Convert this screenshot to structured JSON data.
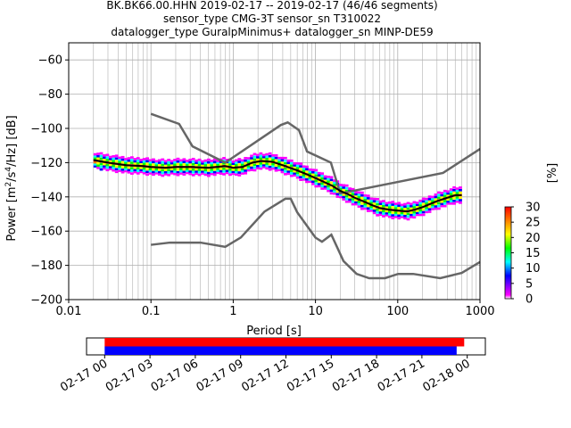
{
  "chart_data": [
    {
      "type": "heatmap",
      "title_lines": [
        "BK.BK66.00.HHN   2019-02-17 -- 2019-02-17  (46/46 segments)",
        "sensor_type CMG-3T sensor_sn T310022",
        "datalogger_type GuralpMinimus+ datalogger_sn MINP-DE59"
      ],
      "xlabel": "Period [s]",
      "ylabel_parts": [
        "Power [m",
        "2",
        "/s",
        "4",
        "/Hz] [dB]"
      ],
      "xscale": "log",
      "xlim": [
        0.01,
        1000
      ],
      "ylim": [
        -200,
        -50
      ],
      "xticks": [
        {
          "value": 0.01,
          "label": "0.01"
        },
        {
          "value": 0.1,
          "label": "0.1"
        },
        {
          "value": 1,
          "label": "1"
        },
        {
          "value": 10,
          "label": "10"
        },
        {
          "value": 100,
          "label": "100"
        },
        {
          "value": 1000,
          "label": "1000"
        }
      ],
      "yticks": [
        {
          "value": -60,
          "label": "−60"
        },
        {
          "value": -80,
          "label": "−80"
        },
        {
          "value": -100,
          "label": "−100"
        },
        {
          "value": -120,
          "label": "−120"
        },
        {
          "value": -140,
          "label": "−140"
        },
        {
          "value": -160,
          "label": "−160"
        },
        {
          "value": -180,
          "label": "−180"
        },
        {
          "value": -200,
          "label": "−200"
        }
      ],
      "grid": true,
      "series": [
        {
          "name": "NHNM",
          "color": "#666666",
          "x": [
            0.1,
            0.22,
            0.32,
            0.8,
            3.8,
            4.6,
            6.3,
            7.9,
            15.4,
            20,
            354.8,
            1000
          ],
          "y": [
            -91.5,
            -97.4,
            -110.5,
            -120,
            -98,
            -96.5,
            -101,
            -113.5,
            -120,
            -138,
            -126,
            -112
          ]
        },
        {
          "name": "NLNM",
          "color": "#666666",
          "x": [
            0.1,
            0.17,
            0.4,
            0.8,
            1.24,
            2.4,
            4.3,
            5,
            6,
            10,
            12,
            15.6,
            21.9,
            31.6,
            45,
            70,
            101,
            154,
            328,
            600,
            1000
          ],
          "y": [
            -168,
            -166.7,
            -166.7,
            -169.2,
            -163.7,
            -148.6,
            -141.1,
            -141.1,
            -149,
            -163.8,
            -166.2,
            -162.1,
            -177.5,
            -185,
            -187.5,
            -187.5,
            -185,
            -185,
            -187.5,
            -184.4,
            -178
          ]
        },
        {
          "name": "mode",
          "color": "#000000",
          "x": [
            0.02,
            0.03,
            0.05,
            0.08,
            0.1,
            0.15,
            0.2,
            0.3,
            0.5,
            0.8,
            1.0,
            1.3,
            1.7,
            2.2,
            3,
            4,
            6,
            8,
            10,
            13,
            16,
            20,
            25,
            30,
            40,
            50,
            60,
            80,
            100,
            130,
            160,
            200,
            300,
            400,
            500,
            600
          ],
          "y": [
            -118.5,
            -120,
            -121.5,
            -122,
            -122.5,
            -123,
            -122.5,
            -122.5,
            -123,
            -122,
            -123,
            -122.5,
            -120,
            -119,
            -119.5,
            -121.5,
            -124.5,
            -127,
            -129,
            -131.5,
            -133.5,
            -136.5,
            -138.5,
            -140.5,
            -143,
            -145,
            -146.5,
            -147.5,
            -148,
            -148.5,
            -147.5,
            -146,
            -142.5,
            -140.5,
            -139,
            -139
          ]
        }
      ],
      "colorbar": {
        "label": "[%]",
        "min": 0,
        "max": 30,
        "ticks": [
          "0",
          "5",
          "10",
          "15",
          "20",
          "25",
          "30"
        ],
        "colors": [
          "#ffffff",
          "#ff00ff",
          "#0000ff",
          "#00ffff",
          "#00ff00",
          "#ffff00",
          "#ff8000",
          "#ff0000"
        ]
      }
    },
    {
      "type": "bar",
      "description_free": true,
      "tick_labels": [
        "02-17 00",
        "02-17 03",
        "02-17 06",
        "02-17 09",
        "02-17 12",
        "02-17 15",
        "02-17 18",
        "02-17 21",
        "02-18 00"
      ],
      "tick_hours": [
        0,
        3,
        6,
        9,
        12,
        15,
        18,
        21,
        24
      ],
      "xlim_hours": [
        -1.2,
        25.2
      ],
      "bars": [
        {
          "color": "#ff0000",
          "start_hours": 0,
          "end_hours": 23.8
        },
        {
          "color": "#0000ff",
          "start_hours": 0,
          "end_hours": 23.3
        }
      ]
    }
  ]
}
